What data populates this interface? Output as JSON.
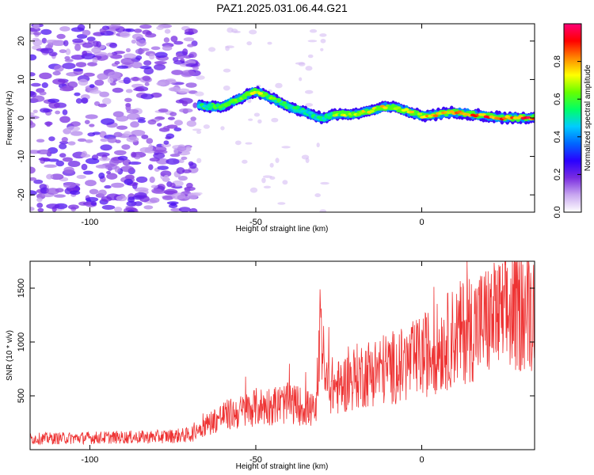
{
  "title": "PAZ1.2025.031.06.44.G21",
  "chart_data": [
    {
      "type": "heatmap",
      "xlabel": "Height of straight line (km)",
      "ylabel": "Frequency (Hz)",
      "xlim": [
        -118,
        34
      ],
      "ylim": [
        -24.5,
        24.5
      ],
      "xticks": [
        -100,
        -50,
        0
      ],
      "yticks": [
        -20,
        -10,
        0,
        10,
        20
      ],
      "colorbar": {
        "label": "Normalized spectral amplitude",
        "range": [
          0,
          1
        ],
        "ticks": [
          0.0,
          0.2,
          0.4,
          0.6,
          0.8
        ],
        "colors": [
          "#ffffff",
          "#c9a8f0",
          "#7a2de0",
          "#2a00ff",
          "#0066ff",
          "#00ccff",
          "#00ff66",
          "#66ff00",
          "#ffff00",
          "#ff8800",
          "#ff0000",
          "#ff0077"
        ]
      },
      "ridge": {
        "x": [
          -67,
          -60,
          -55,
          -50,
          -45,
          -40,
          -35,
          -30,
          -25,
          -20,
          -15,
          -10,
          -5,
          0,
          5,
          10,
          15,
          20,
          25,
          30,
          34
        ],
        "frequency": [
          3,
          3,
          5,
          7,
          5,
          3,
          1.5,
          0,
          1,
          1,
          2,
          3,
          2,
          0.5,
          1,
          1.5,
          1,
          0.5,
          0,
          0,
          0
        ],
        "amplitude": [
          0.55,
          0.6,
          0.65,
          0.7,
          0.6,
          0.55,
          0.5,
          0.55,
          0.65,
          0.7,
          0.72,
          0.75,
          0.72,
          0.75,
          0.8,
          0.82,
          0.85,
          0.88,
          0.9,
          0.92,
          0.92
        ]
      }
    },
    {
      "type": "line",
      "xlabel": "Height of straight line (km)",
      "ylabel": "SNR (10 * v/v)",
      "xlim": [
        -118,
        34
      ],
      "ylim": [
        0,
        1750
      ],
      "xticks": [
        -100,
        -50,
        0
      ],
      "yticks": [
        500,
        1000,
        1500
      ],
      "color": "#ee3333",
      "envelope": {
        "x": [
          -118,
          -100,
          -80,
          -70,
          -65,
          -60,
          -55,
          -50,
          -45,
          -40,
          -35,
          -32,
          -30,
          -25,
          -20,
          -15,
          -10,
          -5,
          0,
          5,
          10,
          15,
          20,
          25,
          30,
          34
        ],
        "snr": [
          120,
          130,
          140,
          160,
          280,
          380,
          420,
          480,
          500,
          520,
          480,
          420,
          760,
          700,
          820,
          880,
          920,
          950,
          1050,
          1150,
          1280,
          1380,
          1450,
          1500,
          1580,
          1600
        ]
      }
    }
  ]
}
